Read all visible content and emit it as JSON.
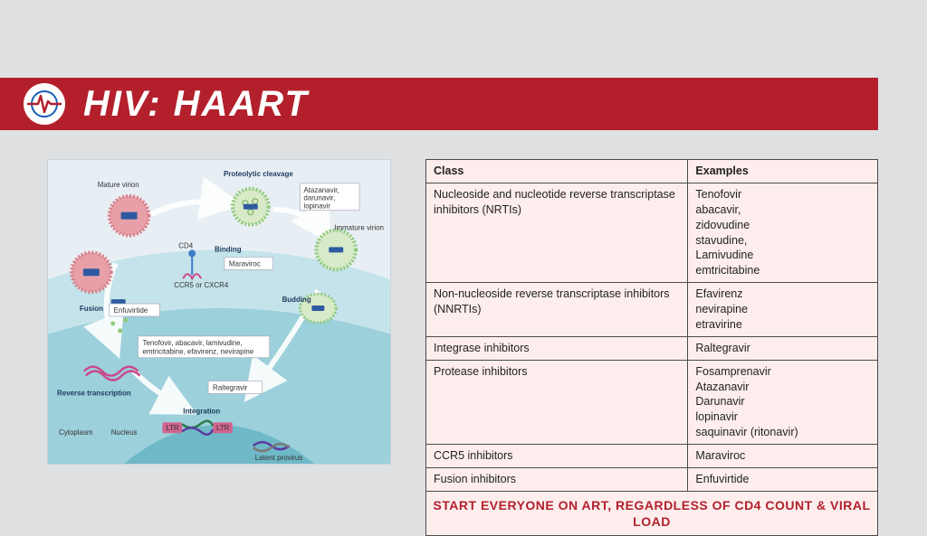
{
  "header": {
    "title": "HIV: HAART",
    "bar_color": "#b3202c",
    "title_color": "#ffffff",
    "logo_bg": "#ffffff",
    "logo_line_color": "#b3202c",
    "logo_accent": "#1a5fb4"
  },
  "page_bg": "#dfe0e2",
  "diagram": {
    "type": "infographic",
    "background_color": "#e8eff4",
    "cell_inner_color": "#9cd0db",
    "cell_outer_color": "#c4e3ea",
    "nucleus_color": "#6fb8c7",
    "arrow_color": "#ffffff",
    "labels": {
      "mature_virion": "Mature virion",
      "proteolytic_cleavage": "Proteolytic cleavage",
      "immature_virion": "Immature virion",
      "binding": "Binding",
      "cd4": "CD4",
      "ccr5": "CCR5 or CXCR4",
      "fusion": "Fusion",
      "budding": "Budding",
      "reverse_transcription": "Reverse transcription",
      "integration": "Integration",
      "cytoplasm": "Cytoplasm",
      "nucleus": "Nucleus",
      "latent_provirus": "Latent provirus",
      "ltr": "LTR"
    },
    "drug_boxes": {
      "atazanavir": "Atazanavir, darunavir, lopinavir",
      "maraviroc": "Maraviroc",
      "enfuvirtide": "Enfuvirtide",
      "nrti_list": "Tenofovir, abacavir, lamivudine, emtricitabine, efavirenz, nevirapine",
      "raltegravir": "Raltegravir"
    },
    "colors": {
      "virion_pink": "#e8a0a8",
      "virion_green": "#8fc97a",
      "capsid_blue": "#2d5aa0",
      "receptor_blue": "#3d7cc9",
      "rna_pink": "#c94a8a",
      "dna_strand1": "#2a7a4a",
      "dna_strand2": "#5a3aa0",
      "ltr_box": "#d06590"
    }
  },
  "table": {
    "background_color": "#fdeeed",
    "border_color": "#4a4a4a",
    "columns": [
      "Class",
      "Examples"
    ],
    "rows": [
      {
        "class": "Nucleoside and nucleotide reverse transcriptase inhibitors (NRTIs)",
        "examples": "Tenofovir\nabacavir,\nzidovudine\nstavudine,\nLamivudine\nemtricitabine"
      },
      {
        "class": "Non-nucleoside reverse transcriptase inhibitors (NNRTIs)",
        "examples": "Efavirenz\nnevirapine\netravirine"
      },
      {
        "class": "Integrase inhibitors",
        "examples": "Raltegravir"
      },
      {
        "class": "Protease inhibitors",
        "examples": "Fosamprenavir\nAtazanavir\nDarunavir\nlopinavir\nsaquinavir (ritonavir)"
      },
      {
        "class": "CCR5 inhibitors",
        "examples": "Maraviroc"
      },
      {
        "class": "Fusion inhibitors",
        "examples": "Enfuvirtide"
      }
    ],
    "footer": "START EVERYONE ON ART, REGARDLESS OF CD4 COUNT & VIRAL LOAD",
    "footer_color": "#b3202c"
  }
}
